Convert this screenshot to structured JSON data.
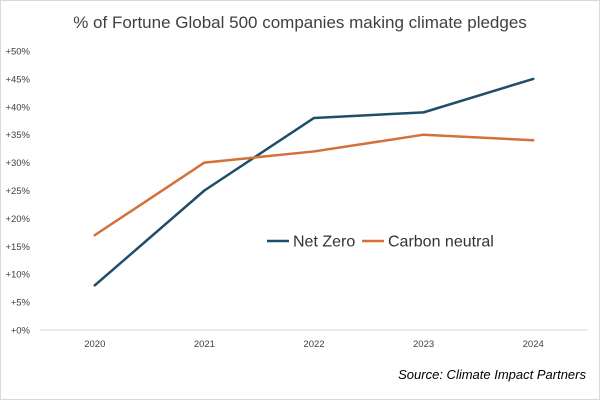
{
  "chart_data": {
    "type": "line",
    "title": "% of Fortune Global 500 companies making climate pledges",
    "xlabel": "",
    "ylabel": "",
    "categories": [
      "2020",
      "2021",
      "2022",
      "2023",
      "2024"
    ],
    "ylim": [
      0,
      50
    ],
    "yticks": [
      0,
      5,
      10,
      15,
      20,
      25,
      30,
      35,
      40,
      45,
      50
    ],
    "ytick_labels": [
      "+0%",
      "+5%",
      "+10%",
      "+15%",
      "+20%",
      "+25%",
      "+30%",
      "+35%",
      "+40%",
      "+45%",
      "+50%"
    ],
    "grid": false,
    "legend_position": "center-right",
    "series": [
      {
        "name": "Net Zero",
        "color": "#1f4e6b",
        "values": [
          8,
          25,
          38,
          39,
          45
        ]
      },
      {
        "name": "Carbon neutral",
        "color": "#d4703a",
        "values": [
          17,
          30,
          32,
          35,
          34
        ]
      }
    ],
    "source": "Source: Climate Impact Partners"
  }
}
